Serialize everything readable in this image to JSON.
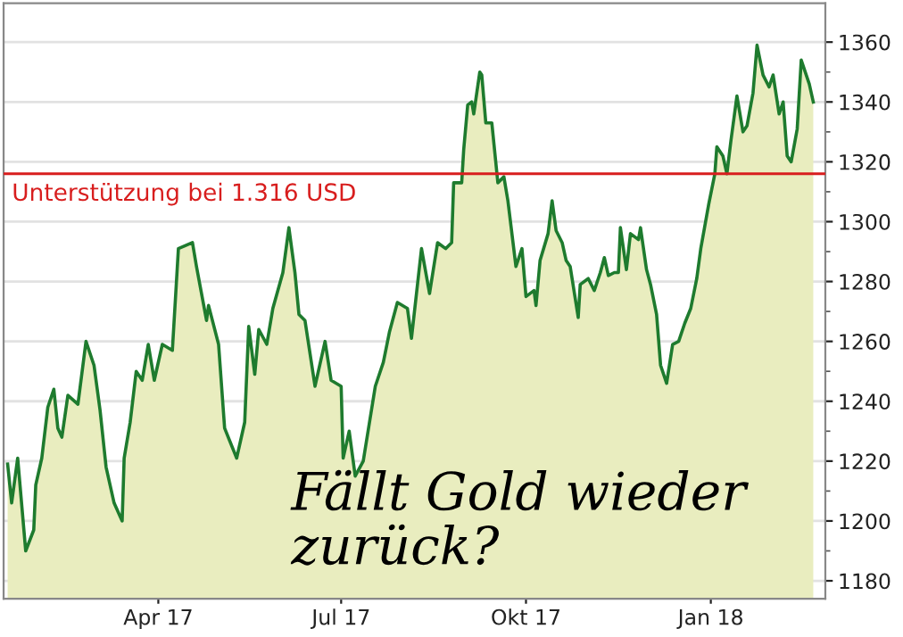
{
  "chart_data": {
    "type": "area",
    "x": [
      "2017-01-16",
      "2017-01-18",
      "2017-01-21",
      "2017-01-25",
      "2017-01-29",
      "2017-01-30",
      "2017-02-02",
      "2017-02-05",
      "2017-02-08",
      "2017-02-10",
      "2017-02-12",
      "2017-02-15",
      "2017-02-20",
      "2017-02-24",
      "2017-02-28",
      "2017-03-03",
      "2017-03-06",
      "2017-03-10",
      "2017-03-14",
      "2017-03-15",
      "2017-03-18",
      "2017-03-21",
      "2017-03-24",
      "2017-03-27",
      "2017-03-30",
      "2017-04-03",
      "2017-04-08",
      "2017-04-11",
      "2017-04-18",
      "2017-04-20",
      "2017-04-25",
      "2017-04-26",
      "2017-05-01",
      "2017-05-04",
      "2017-05-10",
      "2017-05-14",
      "2017-05-16",
      "2017-05-19",
      "2017-05-21",
      "2017-05-25",
      "2017-05-28",
      "2017-06-02",
      "2017-06-05",
      "2017-06-08",
      "2017-06-10",
      "2017-06-13",
      "2017-06-18",
      "2017-06-23",
      "2017-06-26",
      "2017-07-01",
      "2017-07-02",
      "2017-07-05",
      "2017-07-08",
      "2017-07-12",
      "2017-07-18",
      "2017-07-22",
      "2017-07-25",
      "2017-07-29",
      "2017-08-03",
      "2017-08-05",
      "2017-08-10",
      "2017-08-14",
      "2017-08-18",
      "2017-08-22",
      "2017-08-25",
      "2017-08-26",
      "2017-08-30",
      "2017-08-31",
      "2017-09-02",
      "2017-09-04",
      "2017-09-05",
      "2017-09-08",
      "2017-09-09",
      "2017-09-11",
      "2017-09-14",
      "2017-09-17",
      "2017-09-20",
      "2017-09-22",
      "2017-09-26",
      "2017-09-29",
      "2017-10-01",
      "2017-10-05",
      "2017-10-06",
      "2017-10-08",
      "2017-10-12",
      "2017-10-14",
      "2017-10-16",
      "2017-10-19",
      "2017-10-21",
      "2017-10-23",
      "2017-10-27",
      "2017-10-28",
      "2017-11-01",
      "2017-11-04",
      "2017-11-07",
      "2017-11-09",
      "2017-11-11",
      "2017-11-14",
      "2017-11-16",
      "2017-11-17",
      "2017-11-20",
      "2017-11-22",
      "2017-11-26",
      "2017-11-27",
      "2017-11-30",
      "2017-12-02",
      "2017-12-05",
      "2017-12-07",
      "2017-12-10",
      "2017-12-13",
      "2017-12-16",
      "2017-12-19",
      "2017-12-22",
      "2017-12-25",
      "2017-12-27",
      "2017-12-31",
      "2018-01-03",
      "2018-01-04",
      "2018-01-07",
      "2018-01-09",
      "2018-01-11",
      "2018-01-14",
      "2018-01-17",
      "2018-01-19",
      "2018-01-22",
      "2018-01-24",
      "2018-01-27",
      "2018-01-30",
      "2018-02-01",
      "2018-02-04",
      "2018-02-06",
      "2018-02-08",
      "2018-02-10",
      "2018-02-13",
      "2018-02-15",
      "2018-02-19",
      "2018-02-21"
    ],
    "series": [
      {
        "color": "#1e7b2e",
        "values": [
          1219,
          1206,
          1221,
          1190,
          1197,
          1212,
          1221,
          1238,
          1244,
          1231,
          1228,
          1242,
          1239,
          1260,
          1252,
          1237,
          1218,
          1206,
          1200,
          1221,
          1233,
          1250,
          1247,
          1259,
          1247,
          1259,
          1257,
          1291,
          1293,
          1285,
          1267,
          1272,
          1259,
          1231,
          1221,
          1233,
          1265,
          1249,
          1264,
          1259,
          1271,
          1283,
          1298,
          1283,
          1269,
          1267,
          1245,
          1260,
          1247,
          1245,
          1221,
          1230,
          1215,
          1220,
          1245,
          1253,
          1263,
          1273,
          1271,
          1261,
          1291,
          1276,
          1293,
          1291,
          1293,
          1313,
          1313,
          1324,
          1339,
          1340,
          1336,
          1350,
          1349,
          1333,
          1333,
          1313,
          1315,
          1307,
          1285,
          1291,
          1275,
          1277,
          1272,
          1287,
          1296,
          1307,
          1297,
          1293,
          1287,
          1285,
          1268,
          1279,
          1281,
          1277,
          1283,
          1288,
          1282,
          1283,
          1283,
          1298,
          1284,
          1296,
          1294,
          1298,
          1284,
          1279,
          1269,
          1252,
          1246,
          1259,
          1260,
          1266,
          1271,
          1281,
          1291,
          1306,
          1316,
          1325,
          1322,
          1316,
          1327,
          1342,
          1330,
          1332,
          1343,
          1359,
          1349,
          1345,
          1349,
          1336,
          1340,
          1322,
          1320,
          1331,
          1354,
          1346,
          1340
        ]
      }
    ],
    "xlim": [
      "2017-01-14",
      "2018-02-27"
    ],
    "xticks": [
      {
        "value": "2017-04-01",
        "label": "Apr 17"
      },
      {
        "value": "2017-07-01",
        "label": "Jul 17"
      },
      {
        "value": "2017-10-01",
        "label": "Okt 17"
      },
      {
        "value": "2018-01-01",
        "label": "Jan 18"
      }
    ],
    "ylim": [
      1174,
      1373
    ],
    "yticks": [
      1180,
      {
        "value": 1190,
        "label": null
      },
      1200,
      {
        "value": 1210,
        "label": null
      },
      1220,
      {
        "value": 1230,
        "label": null
      },
      1240,
      {
        "value": 1250,
        "label": null
      },
      1260,
      {
        "value": 1270,
        "label": null
      },
      1280,
      {
        "value": 1290,
        "label": null
      },
      1300,
      {
        "value": 1310,
        "label": null
      },
      1320,
      {
        "value": 1330,
        "label": null
      },
      1340,
      {
        "value": 1350,
        "label": null
      },
      1360
    ],
    "grid": "y",
    "ref_lines": [
      {
        "axis": "y",
        "value": 1316,
        "label": "Unterstützung bei 1.316 USD",
        "color": "#d81e1e"
      }
    ],
    "annotations": [
      "Fällt Gold wieder\nzurück?"
    ]
  }
}
